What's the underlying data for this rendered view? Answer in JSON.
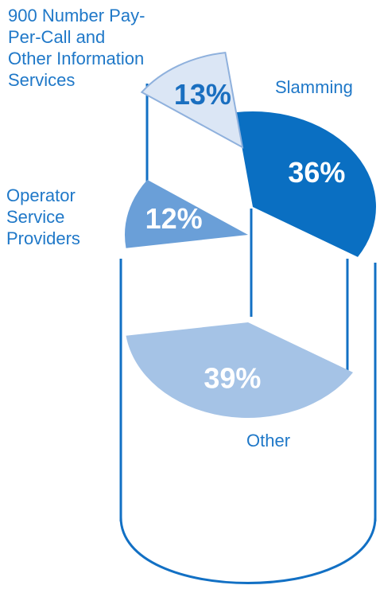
{
  "chart_data": {
    "type": "pie",
    "categories": [
      "Slamming",
      "Other",
      "Operator Service Providers",
      "900 Number Pay-Per-Call and Other Information Services"
    ],
    "values": [
      36,
      39,
      12,
      13
    ],
    "value_labels": [
      "36%",
      "39%",
      "12%",
      "13%"
    ],
    "colors": [
      "#0a6fc2",
      "#a5c3e6",
      "#6a9fd8",
      "#dbe6f5"
    ]
  }
}
